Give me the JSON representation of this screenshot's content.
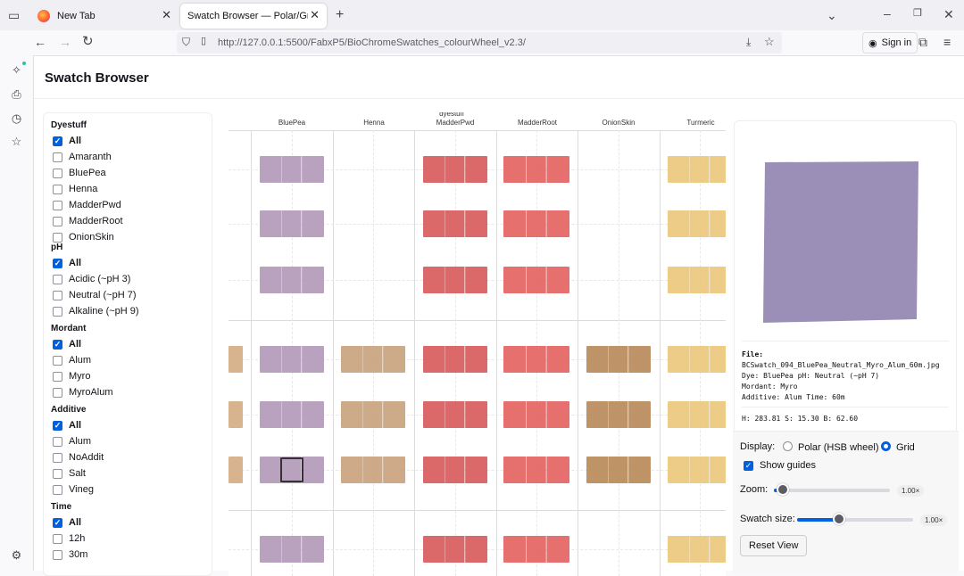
{
  "browser": {
    "tabs": [
      {
        "title": "New Tab"
      },
      {
        "title": "Swatch Browser — Polar/Grid + Filte"
      }
    ],
    "url": {
      "host": "http://127.0.0.1",
      "rest": ":5500/FabxP5/BioChromeSwatches_colourWheel_v2.3/"
    },
    "signin": "Sign in"
  },
  "page": {
    "title": "Swatch Browser"
  },
  "filters": {
    "groups": [
      {
        "title": "Dyestuff",
        "items": [
          [
            "All",
            true
          ],
          [
            "Amaranth",
            false
          ],
          [
            "BluePea",
            false
          ],
          [
            "Henna",
            false
          ],
          [
            "MadderPwd",
            false
          ],
          [
            "MadderRoot",
            false
          ],
          [
            "OnionSkin",
            false
          ]
        ]
      },
      {
        "title": "pH",
        "items": [
          [
            "All",
            true
          ],
          [
            "Acidic (~pH 3)",
            false
          ],
          [
            "Neutral (~pH 7)",
            false
          ],
          [
            "Alkaline (~pH 9)",
            false
          ]
        ]
      },
      {
        "title": "Mordant",
        "items": [
          [
            "All",
            true
          ],
          [
            "Alum",
            false
          ],
          [
            "Myro",
            false
          ],
          [
            "MyroAlum",
            false
          ]
        ]
      },
      {
        "title": "Additive",
        "items": [
          [
            "All",
            true
          ],
          [
            "Alum",
            false
          ],
          [
            "NoAddit",
            false
          ],
          [
            "Salt",
            false
          ],
          [
            "Vineg",
            false
          ]
        ]
      },
      {
        "title": "Time",
        "items": [
          [
            "All",
            true
          ],
          [
            "12h",
            false
          ],
          [
            "30m",
            false
          ]
        ]
      }
    ]
  },
  "grid": {
    "axis_label": "dyestuff",
    "columns": [
      "BluePea",
      "Henna",
      "MadderPwd",
      "MadderRoot",
      "OnionSkin",
      "Turmeric"
    ],
    "colors": {
      "BluePea": "#b39ab9",
      "Henna": "#c9a27e",
      "MadderPwd": "#d85c5c",
      "MadderRoot": "#e46462",
      "OnionSkin": "#b98a5a",
      "Turmeric": "#ebc77c",
      "left": "#d8b48e"
    }
  },
  "preview": {
    "swatch_color": "#9b8fb8",
    "file_label": "File:",
    "file": "BCSwatch_094_BluePea_Neutral_Myro_Alum_60m.jpg",
    "line_dye": "Dye: BluePea pH: Neutral (~pH 7)",
    "line_mordant": "Mordant: Myro",
    "line_additive": "Additive: Alum Time: 60m",
    "hsb": "H: 283.81 S: 15.30 B: 62.60"
  },
  "controls": {
    "display_label": "Display:",
    "polar_label": "Polar (HSB wheel)",
    "grid_label": "Grid",
    "guides_label": "Show guides",
    "zoom_label": "Zoom:",
    "zoom_value": "1.00×",
    "zoom_fraction": 0.08,
    "size_label": "Swatch size:",
    "size_value": "1.00×",
    "size_fraction": 0.36,
    "reset_label": "Reset View"
  }
}
